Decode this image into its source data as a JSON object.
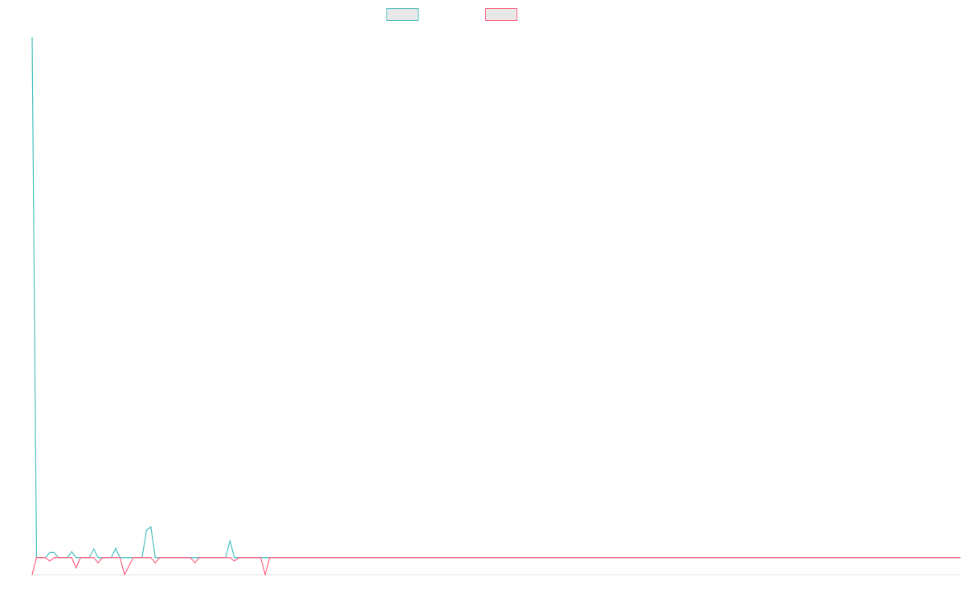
{
  "chart_data": {
    "type": "line",
    "title": "",
    "xlabel": "",
    "ylabel": "",
    "grid": false,
    "legend_position": "top",
    "x_count": 212,
    "baseline": 0,
    "y_range": [
      -1.0,
      31.0
    ],
    "series": [
      {
        "name": "",
        "color": "#4bc0c0",
        "fill": "#e8e8e8",
        "spikes": [
          {
            "x": 0,
            "y": 30.5
          },
          {
            "x": 4,
            "y": 0.3
          },
          {
            "x": 5,
            "y": 0.3
          },
          {
            "x": 9,
            "y": 0.35
          },
          {
            "x": 14,
            "y": 0.5
          },
          {
            "x": 19,
            "y": 0.55
          },
          {
            "x": 26,
            "y": 1.6
          },
          {
            "x": 27,
            "y": 1.8
          },
          {
            "x": 45,
            "y": 1.0
          }
        ]
      },
      {
        "name": "",
        "color": "#ff6384",
        "fill": "#e8e8e8",
        "spikes": [
          {
            "x": 0,
            "y": -1.0
          },
          {
            "x": 4,
            "y": -0.2
          },
          {
            "x": 10,
            "y": -0.6
          },
          {
            "x": 15,
            "y": -0.3
          },
          {
            "x": 21,
            "y": -1.0
          },
          {
            "x": 22,
            "y": -0.5
          },
          {
            "x": 28,
            "y": -0.3
          },
          {
            "x": 37,
            "y": -0.3
          },
          {
            "x": 46,
            "y": -0.2
          },
          {
            "x": 53,
            "y": -1.0
          }
        ]
      }
    ]
  }
}
